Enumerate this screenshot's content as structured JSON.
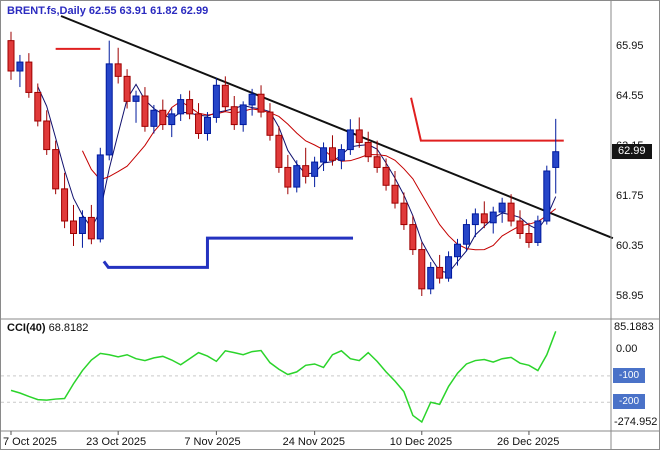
{
  "window": {
    "title": "BRENT.fs,Daily 62.55 63.91 61.82 62.99"
  },
  "chart_data": {
    "type": "candlestick",
    "symbol": "BRENT.fs",
    "timeframe": "Daily",
    "current_bar": {
      "open": "62.55",
      "high": "63.91",
      "low": "61.82",
      "close": "62.99"
    },
    "price_axis": {
      "labels": [
        "65.95",
        "64.55",
        "63.15",
        "61.75",
        "60.35",
        "58.95"
      ],
      "current_price": "62.99"
    },
    "x_axis": {
      "labels": [
        {
          "text": "7 Oct 2025",
          "index": 0
        },
        {
          "text": "23 Oct 2025",
          "index": 12
        },
        {
          "text": "7 Nov 2025",
          "index": 23
        },
        {
          "text": "24 Nov 2025",
          "index": 34
        },
        {
          "text": "10 Dec 2025",
          "index": 46
        },
        {
          "text": "26 Dec 2025",
          "index": 58
        }
      ]
    },
    "candles": [
      [
        66.1,
        66.35,
        65.0,
        65.25
      ],
      [
        65.25,
        65.7,
        64.8,
        65.5
      ],
      [
        65.5,
        65.75,
        64.5,
        64.65
      ],
      [
        64.65,
        64.9,
        63.7,
        63.85
      ],
      [
        63.85,
        64.15,
        62.9,
        63.05
      ],
      [
        63.05,
        63.3,
        61.8,
        61.95
      ],
      [
        61.95,
        62.4,
        60.85,
        61.05
      ],
      [
        61.05,
        61.5,
        60.35,
        60.7
      ],
      [
        60.7,
        61.35,
        60.3,
        61.15
      ],
      [
        61.15,
        61.5,
        60.4,
        60.55
      ],
      [
        60.55,
        63.1,
        60.45,
        62.9
      ],
      [
        62.9,
        66.1,
        62.75,
        65.45
      ],
      [
        65.45,
        65.9,
        64.9,
        65.1
      ],
      [
        65.1,
        65.3,
        64.2,
        64.4
      ],
      [
        64.4,
        64.7,
        63.8,
        64.55
      ],
      [
        64.55,
        64.8,
        63.55,
        63.7
      ],
      [
        63.7,
        64.3,
        63.5,
        64.15
      ],
      [
        64.15,
        64.45,
        63.6,
        63.75
      ],
      [
        63.75,
        64.2,
        63.4,
        64.05
      ],
      [
        64.05,
        64.6,
        63.85,
        64.45
      ],
      [
        64.45,
        64.7,
        63.9,
        64.05
      ],
      [
        64.05,
        64.35,
        63.35,
        63.5
      ],
      [
        63.5,
        64.1,
        63.3,
        63.95
      ],
      [
        63.95,
        65.05,
        63.8,
        64.85
      ],
      [
        64.85,
        65.1,
        64.1,
        64.25
      ],
      [
        64.25,
        64.55,
        63.6,
        63.75
      ],
      [
        63.75,
        64.4,
        63.55,
        64.3
      ],
      [
        64.3,
        64.75,
        64.0,
        64.6
      ],
      [
        64.6,
        64.85,
        63.95,
        64.1
      ],
      [
        64.1,
        64.35,
        63.3,
        63.45
      ],
      [
        63.45,
        63.7,
        62.4,
        62.55
      ],
      [
        62.55,
        62.9,
        61.8,
        62.0
      ],
      [
        62.0,
        62.75,
        61.85,
        62.6
      ],
      [
        62.6,
        63.1,
        62.1,
        62.3
      ],
      [
        62.3,
        62.85,
        62.0,
        62.7
      ],
      [
        62.7,
        63.25,
        62.45,
        63.1
      ],
      [
        63.1,
        63.45,
        62.6,
        62.75
      ],
      [
        62.75,
        63.2,
        62.5,
        63.05
      ],
      [
        63.05,
        63.9,
        62.9,
        63.6
      ],
      [
        63.6,
        63.95,
        63.1,
        63.25
      ],
      [
        63.25,
        63.55,
        62.7,
        62.85
      ],
      [
        62.85,
        63.3,
        62.4,
        62.55
      ],
      [
        62.55,
        62.8,
        61.9,
        62.05
      ],
      [
        62.05,
        62.45,
        61.4,
        61.55
      ],
      [
        61.55,
        61.85,
        60.8,
        60.95
      ],
      [
        60.95,
        61.2,
        60.1,
        60.25
      ],
      [
        60.25,
        60.45,
        58.95,
        59.15
      ],
      [
        59.15,
        59.9,
        59.0,
        59.75
      ],
      [
        59.75,
        60.1,
        59.3,
        59.45
      ],
      [
        59.45,
        60.2,
        59.35,
        60.05
      ],
      [
        60.05,
        60.55,
        59.8,
        60.4
      ],
      [
        60.4,
        61.1,
        60.2,
        60.95
      ],
      [
        60.95,
        61.4,
        60.6,
        61.25
      ],
      [
        61.25,
        61.6,
        60.85,
        61.0
      ],
      [
        61.0,
        61.45,
        60.7,
        61.3
      ],
      [
        61.3,
        61.7,
        61.0,
        61.55
      ],
      [
        61.55,
        61.8,
        60.9,
        61.05
      ],
      [
        61.05,
        61.35,
        60.55,
        60.7
      ],
      [
        60.7,
        61.0,
        60.3,
        60.45
      ],
      [
        60.45,
        61.2,
        60.35,
        61.05
      ],
      [
        61.05,
        62.6,
        60.95,
        62.45
      ],
      [
        62.55,
        63.91,
        61.82,
        62.99
      ]
    ],
    "moving_averages": [
      {
        "name": "fast",
        "period": 4
      },
      {
        "name": "slow",
        "period": 9
      }
    ],
    "trendline": {
      "from": {
        "index": 5.6,
        "price": 66.79
      },
      "to": {
        "index": 67.4,
        "price": 60.57
      }
    },
    "resistance_lines": [
      {
        "points": [
          [
            5.0,
            65.87
          ],
          [
            10.0,
            65.87
          ]
        ]
      },
      {
        "points": [
          [
            44.8,
            64.5
          ],
          [
            45.9,
            63.3
          ],
          [
            61.9,
            63.3
          ]
        ]
      }
    ],
    "support_line": {
      "points": [
        [
          10.4,
          59.92
        ],
        [
          10.9,
          59.75
        ],
        [
          22.0,
          59.75
        ],
        [
          22.0,
          60.57
        ],
        [
          38.3,
          60.57
        ]
      ]
    },
    "cci": {
      "label": "CCI(40)",
      "value": "68.8182",
      "axis": {
        "max": "85.1883",
        "zero": "0.00",
        "levels": [
          "-100",
          "-200"
        ],
        "min": "-274.952"
      },
      "values": [
        -155,
        -165,
        -178,
        -190,
        -192,
        -188,
        -186,
        -130,
        -80,
        -40,
        -15,
        -20,
        -28,
        -20,
        -35,
        -42,
        -32,
        -26,
        -40,
        -58,
        -35,
        -12,
        -25,
        -45,
        -5,
        -12,
        -20,
        -8,
        -4,
        -50,
        -75,
        -95,
        -85,
        -60,
        -55,
        -68,
        -20,
        -5,
        -35,
        -42,
        -12,
        -45,
        -85,
        -120,
        -160,
        -250,
        -274.952,
        -200,
        -208,
        -140,
        -90,
        -55,
        -42,
        -38,
        -48,
        -35,
        -30,
        -52,
        -60,
        -80,
        -20,
        68.8182
      ]
    },
    "colors": {
      "bull": "#2645c8",
      "bull_border": "#001a9e",
      "bear": "#e03a3a",
      "bear_border": "#9e0000",
      "ma_fast": "#10106e",
      "ma_slow": "#c40000",
      "trendline": "#111111",
      "resistance": "#e02020",
      "support": "#2433c0",
      "cci": "#2bd42b",
      "axis_line": "#8a8a8a",
      "level_badge": "#4a72c8",
      "price_badge_bg": "#151515"
    }
  }
}
